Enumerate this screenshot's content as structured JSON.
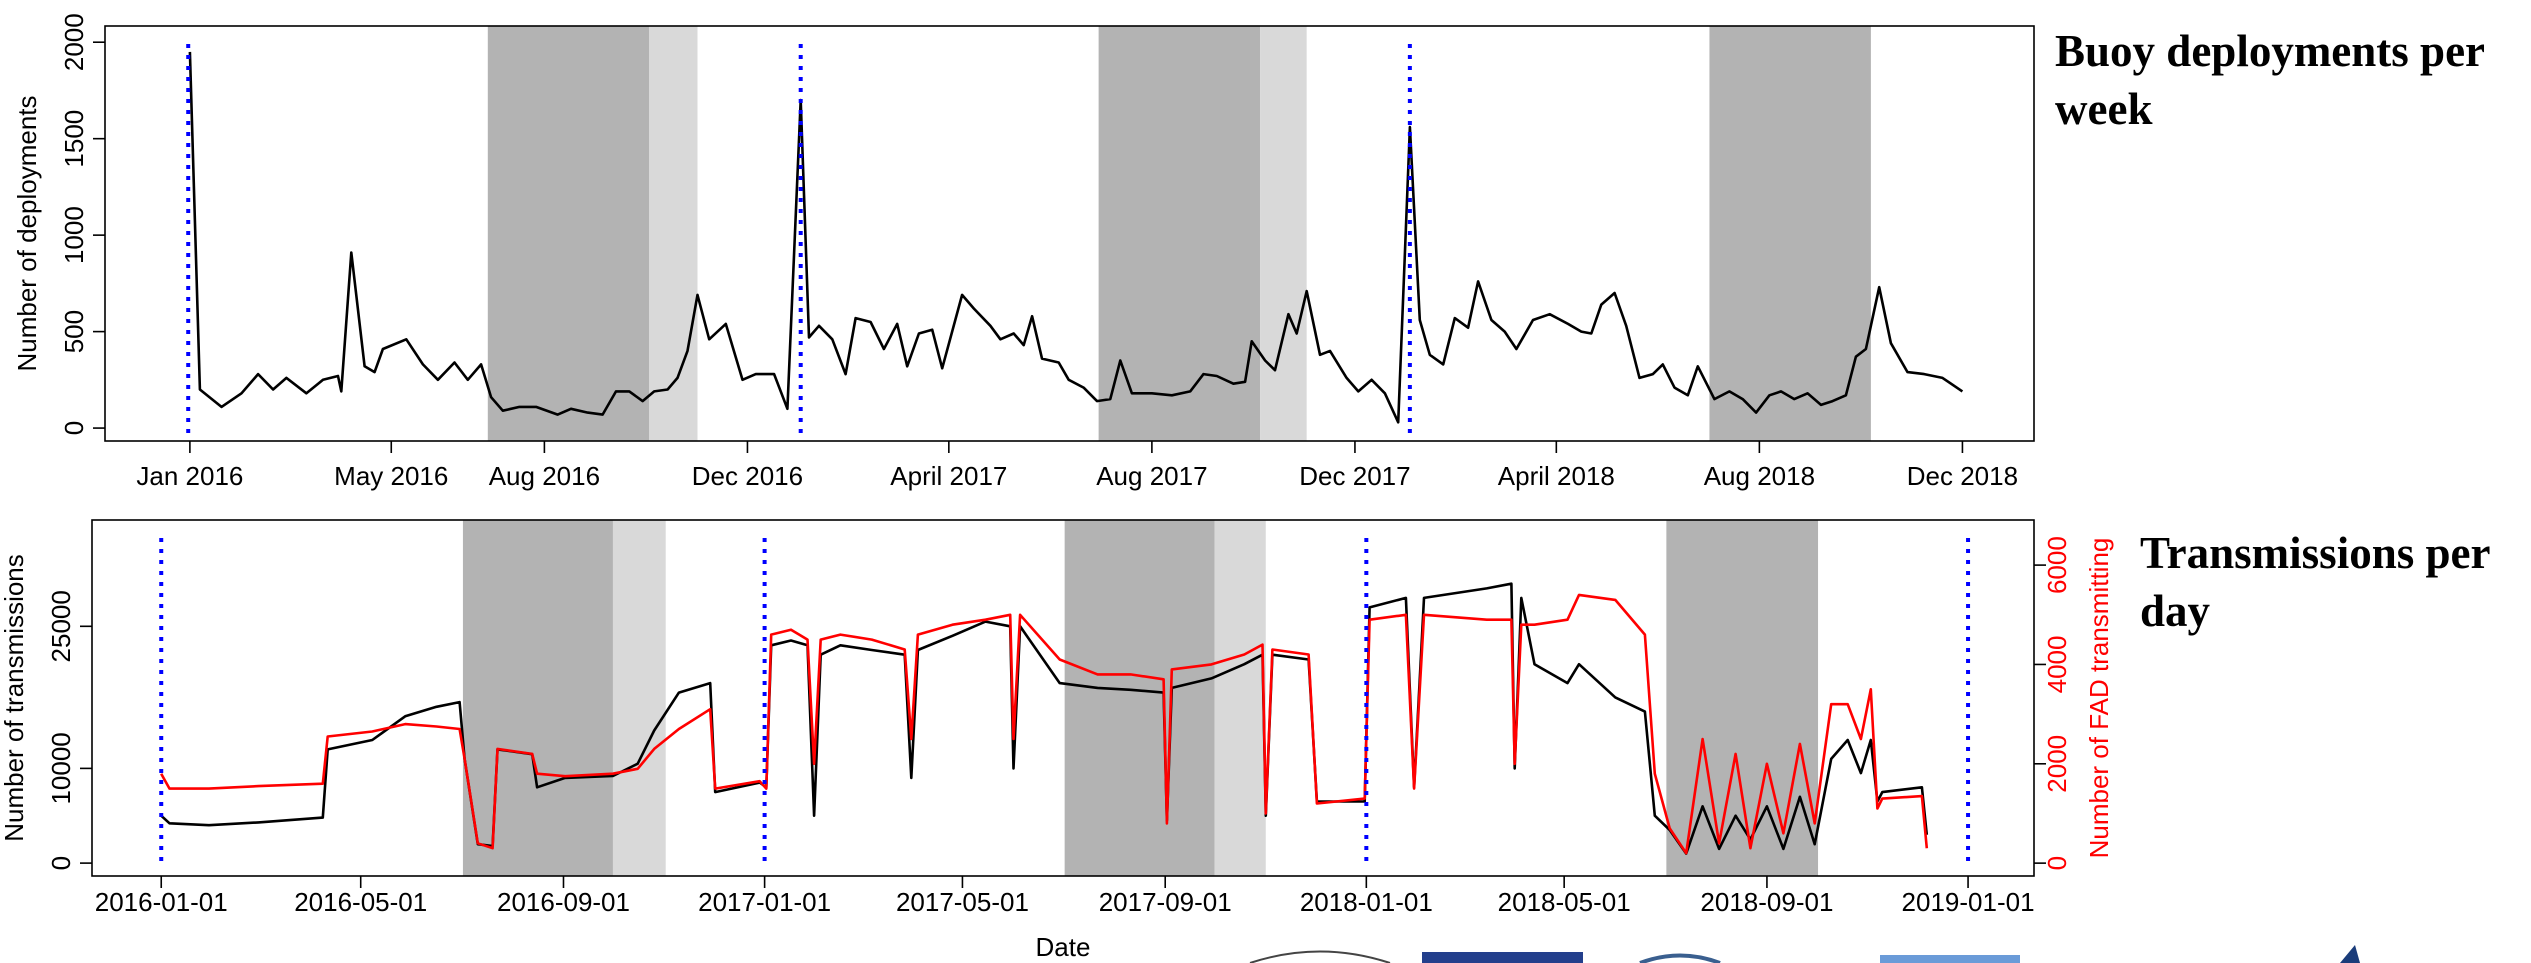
{
  "chart_data": [
    {
      "type": "line",
      "title": "Buoy deployments per week",
      "ylabel": "Number of deployments",
      "xlim": [
        "2015-11-11",
        "2019-01-13"
      ],
      "ylim": [
        -67,
        2084
      ],
      "yticks": [
        0,
        500,
        1000,
        1500,
        2000
      ],
      "xticks": [
        {
          "value": "2016-01-01",
          "label": "Jan 2016"
        },
        {
          "value": "2016-05-01",
          "label": "May 2016"
        },
        {
          "value": "2016-08-01",
          "label": "Aug 2016"
        },
        {
          "value": "2016-12-01",
          "label": "Dec 2016"
        },
        {
          "value": "2017-04-01",
          "label": "April 2017"
        },
        {
          "value": "2017-08-01",
          "label": "Aug 2017"
        },
        {
          "value": "2017-12-01",
          "label": "Dec 2017"
        },
        {
          "value": "2018-04-01",
          "label": "April 2018"
        },
        {
          "value": "2018-08-01",
          "label": "Aug 2018"
        },
        {
          "value": "2018-12-01",
          "label": "Dec 2018"
        }
      ],
      "shaded": [
        {
          "start": "2016-06-28",
          "end": "2016-10-03",
          "color": "#b3b3b3"
        },
        {
          "start": "2016-10-03",
          "end": "2016-11-01",
          "color": "#d9d9d9"
        },
        {
          "start": "2017-06-30",
          "end": "2017-10-05",
          "color": "#b3b3b3"
        },
        {
          "start": "2017-10-05",
          "end": "2017-11-02",
          "color": "#d9d9d9"
        },
        {
          "start": "2018-07-02",
          "end": "2018-10-07",
          "color": "#b3b3b3"
        }
      ],
      "vlines": [
        "2015-12-31",
        "2017-01-02",
        "2018-01-03"
      ],
      "vline_color": "#0000ff",
      "x": [
        "2016-01-01",
        "2016-01-07",
        "2016-01-20",
        "2016-02-01",
        "2016-02-11",
        "2016-02-20",
        "2016-02-28",
        "2016-03-11",
        "2016-03-21",
        "2016-03-30",
        "2016-04-01",
        "2016-04-07",
        "2016-04-15",
        "2016-04-21",
        "2016-04-26",
        "2016-05-10",
        "2016-05-20",
        "2016-05-29",
        "2016-06-08",
        "2016-06-16",
        "2016-06-24",
        "2016-06-30",
        "2016-07-07",
        "2016-07-17",
        "2016-07-27",
        "2016-08-09",
        "2016-08-17",
        "2016-08-27",
        "2016-09-05",
        "2016-09-13",
        "2016-09-21",
        "2016-09-29",
        "2016-10-06",
        "2016-10-14",
        "2016-10-20",
        "2016-10-26",
        "2016-11-01",
        "2016-11-08",
        "2016-11-18",
        "2016-11-28",
        "2016-12-06",
        "2016-12-17",
        "2016-12-25",
        "2017-01-02",
        "2017-01-07",
        "2017-01-13",
        "2017-01-21",
        "2017-01-29",
        "2017-02-04",
        "2017-02-13",
        "2017-02-21",
        "2017-03-01",
        "2017-03-07",
        "2017-03-14",
        "2017-03-22",
        "2017-03-28",
        "2017-04-09",
        "2017-04-16",
        "2017-04-26",
        "2017-05-02",
        "2017-05-10",
        "2017-05-16",
        "2017-05-21",
        "2017-05-27",
        "2017-06-06",
        "2017-06-12",
        "2017-06-21",
        "2017-06-29",
        "2017-07-07",
        "2017-07-13",
        "2017-07-20",
        "2017-08-01",
        "2017-08-13",
        "2017-08-24",
        "2017-09-01",
        "2017-09-09",
        "2017-09-19",
        "2017-09-26",
        "2017-09-30",
        "2017-10-08",
        "2017-10-14",
        "2017-10-22",
        "2017-10-27",
        "2017-11-02",
        "2017-11-10",
        "2017-11-16",
        "2017-11-26",
        "2017-12-03",
        "2017-12-11",
        "2017-12-19",
        "2017-12-27",
        "2018-01-03",
        "2018-01-09",
        "2018-01-15",
        "2018-01-23",
        "2018-01-30",
        "2018-02-07",
        "2018-02-13",
        "2018-02-21",
        "2018-03-01",
        "2018-03-08",
        "2018-03-18",
        "2018-03-28",
        "2018-04-08",
        "2018-04-16",
        "2018-04-22",
        "2018-04-28",
        "2018-05-06",
        "2018-05-13",
        "2018-05-21",
        "2018-05-29",
        "2018-06-04",
        "2018-06-11",
        "2018-06-19",
        "2018-06-25",
        "2018-07-05",
        "2018-07-14",
        "2018-07-22",
        "2018-07-30",
        "2018-08-07",
        "2018-08-14",
        "2018-08-22",
        "2018-08-30",
        "2018-09-07",
        "2018-09-14",
        "2018-09-22",
        "2018-09-28",
        "2018-10-04",
        "2018-10-12",
        "2018-10-19",
        "2018-10-29",
        "2018-11-08",
        "2018-11-19",
        "2018-12-01"
      ],
      "series": [
        {
          "color": "#000000",
          "values": [
            1950,
            200,
            110,
            180,
            280,
            200,
            260,
            180,
            250,
            270,
            190,
            910,
            320,
            290,
            410,
            460,
            330,
            250,
            340,
            250,
            330,
            160,
            90,
            110,
            110,
            70,
            100,
            80,
            70,
            190,
            190,
            140,
            190,
            200,
            260,
            400,
            690,
            460,
            540,
            250,
            280,
            280,
            100,
            1700,
            470,
            530,
            460,
            280,
            570,
            550,
            410,
            540,
            320,
            490,
            510,
            310,
            690,
            620,
            530,
            460,
            490,
            430,
            580,
            360,
            340,
            250,
            210,
            140,
            150,
            350,
            180,
            180,
            170,
            190,
            280,
            270,
            230,
            240,
            450,
            350,
            300,
            590,
            490,
            710,
            380,
            400,
            260,
            190,
            250,
            180,
            30,
            1560,
            560,
            380,
            330,
            570,
            520,
            760,
            560,
            500,
            410,
            560,
            590,
            540,
            500,
            490,
            640,
            700,
            530,
            260,
            280,
            330,
            210,
            170,
            320,
            150,
            190,
            150,
            80,
            170,
            190,
            150,
            180,
            120,
            140,
            170,
            370,
            410,
            730,
            440,
            290,
            280,
            260,
            190
          ]
        }
      ]
    },
    {
      "type": "line",
      "title": "Transmissions per day",
      "xlabel": "Date",
      "ylabel": "Number of transmissions",
      "y2label": "Number of FAD transmitting",
      "xlim": [
        "2015-11-20",
        "2019-02-10"
      ],
      "ylim": [
        -1361,
        36224
      ],
      "yticks": [
        0,
        10000,
        25000
      ],
      "y2lim": [
        -259,
        6908
      ],
      "y2ticks": [
        0,
        2000,
        4000,
        6000
      ],
      "xticks": [
        "2016-01-01",
        "2016-05-01",
        "2016-09-01",
        "2017-01-01",
        "2017-05-01",
        "2017-09-01",
        "2018-01-01",
        "2018-05-01",
        "2018-09-01",
        "2019-01-01"
      ],
      "shaded": [
        {
          "start": "2016-07-02",
          "end": "2016-10-01",
          "color": "#b3b3b3"
        },
        {
          "start": "2016-10-01",
          "end": "2016-11-02",
          "color": "#d9d9d9"
        },
        {
          "start": "2017-07-02",
          "end": "2017-10-01",
          "color": "#b3b3b3"
        },
        {
          "start": "2017-10-01",
          "end": "2017-11-01",
          "color": "#d9d9d9"
        },
        {
          "start": "2018-07-02",
          "end": "2018-10-02",
          "color": "#b3b3b3"
        }
      ],
      "vlines": [
        "2016-01-01",
        "2017-01-01",
        "2018-01-01",
        "2019-01-01"
      ],
      "vline_color": "#0000ff",
      "x": [
        "2016-01-01",
        "2016-01-06",
        "2016-01-30",
        "2016-02-29",
        "2016-04-08",
        "2016-04-11",
        "2016-05-08",
        "2016-05-28",
        "2016-06-16",
        "2016-06-30",
        "2016-07-03",
        "2016-07-11",
        "2016-07-20",
        "2016-07-23",
        "2016-08-13",
        "2016-08-16",
        "2016-09-02",
        "2016-10-01",
        "2016-10-16",
        "2016-10-26",
        "2016-11-10",
        "2016-11-29",
        "2016-12-02",
        "2016-12-29",
        "2017-01-02",
        "2017-01-05",
        "2017-01-17",
        "2017-01-27",
        "2017-01-31",
        "2017-02-04",
        "2017-02-16",
        "2017-03-07",
        "2017-03-27",
        "2017-03-31",
        "2017-04-04",
        "2017-04-25",
        "2017-05-15",
        "2017-05-30",
        "2017-06-01",
        "2017-06-05",
        "2017-06-29",
        "2017-07-22",
        "2017-08-11",
        "2017-08-31",
        "2017-09-02",
        "2017-09-05",
        "2017-09-29",
        "2017-10-19",
        "2017-10-30",
        "2017-11-01",
        "2017-11-05",
        "2017-11-27",
        "2017-12-02",
        "2017-12-31",
        "2018-01-03",
        "2018-01-25",
        "2018-01-30",
        "2018-02-05",
        "2018-03-15",
        "2018-03-30",
        "2018-04-01",
        "2018-04-05",
        "2018-04-13",
        "2018-05-03",
        "2018-05-10",
        "2018-06-01",
        "2018-06-19",
        "2018-06-25",
        "2018-07-04",
        "2018-07-14",
        "2018-07-24",
        "2018-08-03",
        "2018-08-13",
        "2018-08-22",
        "2018-09-01",
        "2018-09-11",
        "2018-09-21",
        "2018-09-30",
        "2018-10-10",
        "2018-10-20",
        "2018-10-28",
        "2018-11-03",
        "2018-11-07",
        "2018-11-10",
        "2018-12-04",
        "2018-12-07"
      ],
      "series": [
        {
          "color": "#000000",
          "values": [
            5000,
            4200,
            4000,
            4300,
            4800,
            12000,
            13000,
            15500,
            16500,
            17000,
            11000,
            2000,
            1800,
            12000,
            11500,
            8000,
            9000,
            9200,
            10500,
            14000,
            18000,
            19000,
            7500,
            8500,
            8000,
            23000,
            23500,
            23000,
            5000,
            22000,
            23000,
            22500,
            22000,
            9000,
            22500,
            24000,
            25500,
            25000,
            10000,
            25000,
            19000,
            18500,
            18300,
            18000,
            4500,
            18500,
            19500,
            21000,
            22000,
            5000,
            22000,
            21500,
            6500,
            6500,
            27000,
            28000,
            8000,
            28000,
            29000,
            29500,
            10000,
            28000,
            21000,
            19000,
            21000,
            17500,
            16000,
            5000,
            3500,
            1000,
            6000,
            1500,
            5000,
            2500,
            6000,
            1500,
            7000,
            2000,
            11000,
            13000,
            9500,
            13000,
            6500,
            7500,
            8000,
            3000
          ]
        },
        {
          "color": "#ff0000",
          "axis": "y2",
          "values": [
            1800,
            1500,
            1500,
            1550,
            1600,
            2550,
            2650,
            2800,
            2750,
            2700,
            2100,
            400,
            300,
            2300,
            2200,
            1800,
            1750,
            1800,
            1900,
            2300,
            2700,
            3100,
            1500,
            1650,
            1500,
            4600,
            4700,
            4500,
            2000,
            4500,
            4600,
            4500,
            4300,
            2500,
            4600,
            4800,
            4900,
            5000,
            2500,
            5000,
            4100,
            3800,
            3800,
            3700,
            800,
            3900,
            4000,
            4200,
            4400,
            1000,
            4300,
            4200,
            1200,
            1300,
            4900,
            5000,
            1500,
            5000,
            4900,
            4900,
            2000,
            4800,
            4800,
            4900,
            5400,
            5300,
            4600,
            1800,
            700,
            200,
            2500,
            400,
            2200,
            300,
            2000,
            600,
            2400,
            800,
            3200,
            3200,
            2500,
            3500,
            1100,
            1300,
            1350,
            300
          ]
        }
      ]
    }
  ]
}
